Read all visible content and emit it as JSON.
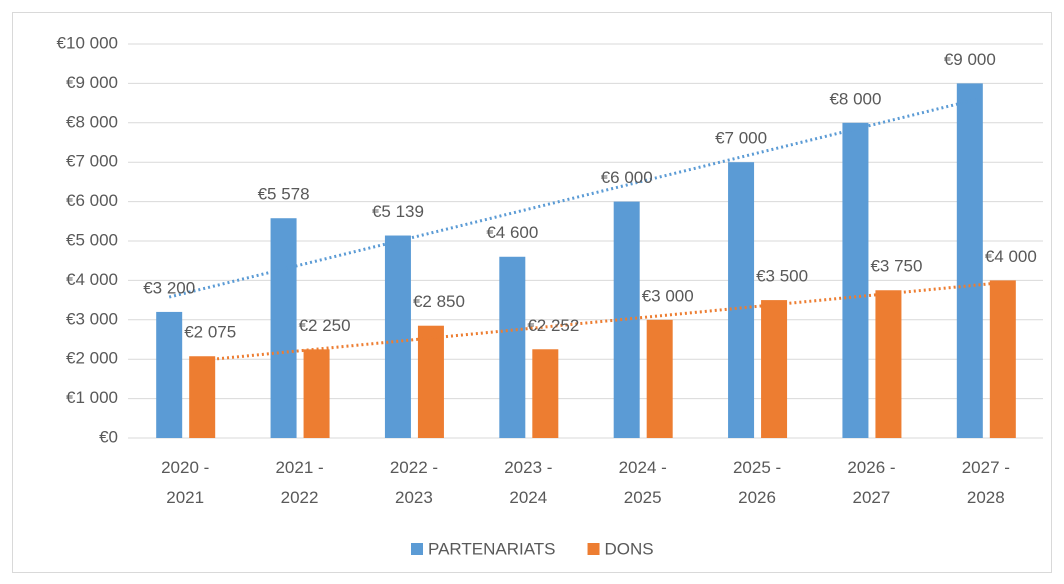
{
  "chart_data": {
    "type": "bar",
    "categories": [
      "2020 - 2021",
      "2021 - 2022",
      "2022 - 2023",
      "2023 - 2024",
      "2024 - 2025",
      "2025 - 2026",
      "2026 - 2027",
      "2027 - 2028"
    ],
    "series": [
      {
        "name": "PARTENARIATS",
        "color": "#5b9bd5",
        "values": [
          3200,
          5578,
          5139,
          4600,
          6000,
          7000,
          8000,
          9000
        ],
        "value_labels": [
          "€3 200",
          "€5 578",
          "€5 139",
          "€4 600",
          "€6 000",
          "€7 000",
          "€8 000",
          "€9 000"
        ]
      },
      {
        "name": "DONS",
        "color": "#ed7d31",
        "values": [
          2075,
          2250,
          2850,
          2252,
          3000,
          3500,
          3750,
          4000
        ],
        "value_labels": [
          "€2 075",
          "€2 250",
          "€2 850",
          "€2 252",
          "€3 000",
          "€3 500",
          "€3 750",
          "€4 000"
        ]
      }
    ],
    "ylim": [
      0,
      10000
    ],
    "yticks": [
      {
        "value": 0,
        "label": "€0"
      },
      {
        "value": 1000,
        "label": "€1 000"
      },
      {
        "value": 2000,
        "label": "€2 000"
      },
      {
        "value": 3000,
        "label": "€3 000"
      },
      {
        "value": 4000,
        "label": "€4 000"
      },
      {
        "value": 5000,
        "label": "€5 000"
      },
      {
        "value": 6000,
        "label": "€6 000"
      },
      {
        "value": 7000,
        "label": "€7 000"
      },
      {
        "value": 8000,
        "label": "€8 000"
      },
      {
        "value": 9000,
        "label": "€9 000"
      },
      {
        "value": 10000,
        "label": "€10 000"
      }
    ],
    "grid": true,
    "trendline": true,
    "legend": "bottom"
  }
}
